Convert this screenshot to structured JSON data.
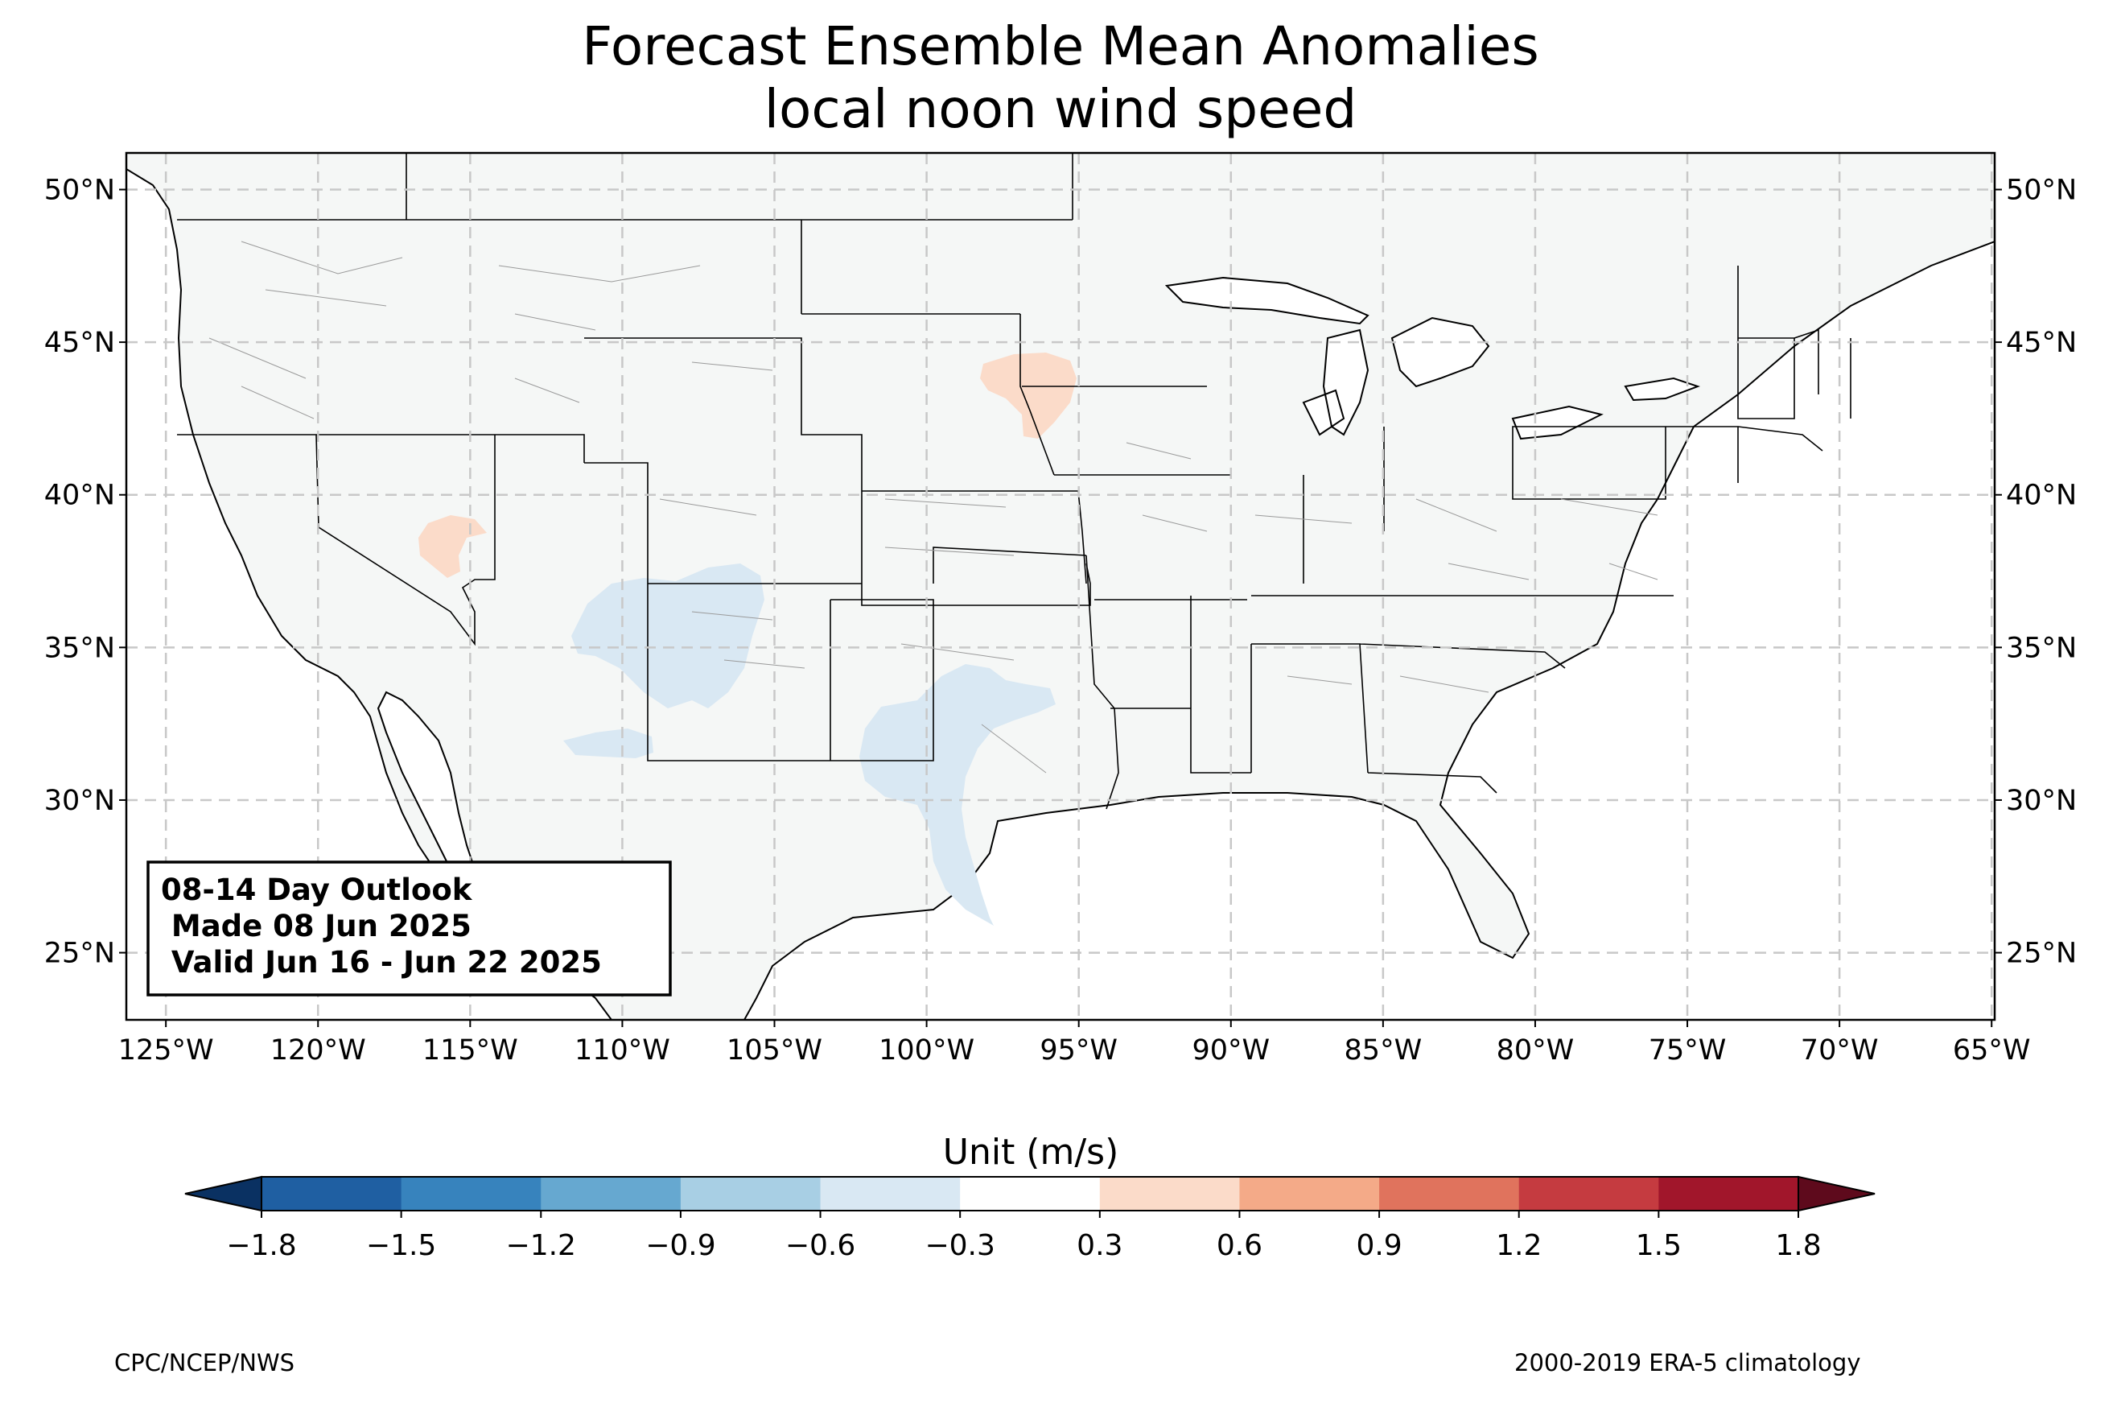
{
  "title": "Forecast Ensemble Mean Anomalies",
  "subtitle": "local noon wind speed",
  "map": {
    "lat_labels": [
      "50°N",
      "45°N",
      "40°N",
      "35°N",
      "30°N",
      "25°N"
    ],
    "lon_labels": [
      "125°W",
      "120°W",
      "115°W",
      "110°W",
      "105°W",
      "100°W",
      "95°W",
      "90°W",
      "85°W",
      "80°W",
      "75°W",
      "70°W",
      "65°W"
    ],
    "lat_values": [
      50,
      45,
      40,
      35,
      30,
      25
    ],
    "lon_values": [
      -125,
      -120,
      -115,
      -110,
      -105,
      -100,
      -95,
      -90,
      -85,
      -80,
      -75,
      -70,
      -65
    ],
    "extent": {
      "lon": [
        -126.3,
        -64.9
      ],
      "lat": [
        22.8,
        51.2
      ]
    },
    "land_color": "#f5f7f6",
    "grid": true,
    "anomaly_regions": [
      {
        "name": "positive anomaly near South Dakota / Minnesota / Iowa",
        "range": "0.3 to 0.6",
        "color": "#fbdbc9"
      },
      {
        "name": "positive anomaly in central Nevada",
        "range": "0.3 to 0.6",
        "color": "#fbdbc9"
      },
      {
        "name": "negative anomaly over Arizona / New Mexico",
        "range": "-0.6 to -0.3",
        "color": "#d9e8f3"
      },
      {
        "name": "negative anomaly over central Texas",
        "range": "-0.6 to -0.3",
        "color": "#d9e8f3"
      }
    ]
  },
  "info_box": {
    "line1": "08-14 Day Outlook",
    "line2": " Made 08 Jun 2025",
    "line3": " Valid Jun 16 - Jun 22 2025"
  },
  "colorbar": {
    "label": "Unit (m/s)",
    "ticks": [
      "−1.8",
      "−1.5",
      "−1.2",
      "−0.9",
      "−0.6",
      "−0.3",
      "0.3",
      "0.6",
      "0.9",
      "1.2",
      "1.5",
      "1.8"
    ],
    "under_color": "#0a3162",
    "over_color": "#5e0a1c",
    "colors": [
      "#1f5fa2",
      "#3783bd",
      "#66a8d0",
      "#a8cfe4",
      "#d9e8f3",
      "#ffffff",
      "#fbdbc9",
      "#f4aa88",
      "#e0735d",
      "#c53b40",
      "#a1162b"
    ]
  },
  "footer": {
    "left": "CPC/NCEP/NWS",
    "right": "2000-2019 ERA-5 climatology"
  }
}
